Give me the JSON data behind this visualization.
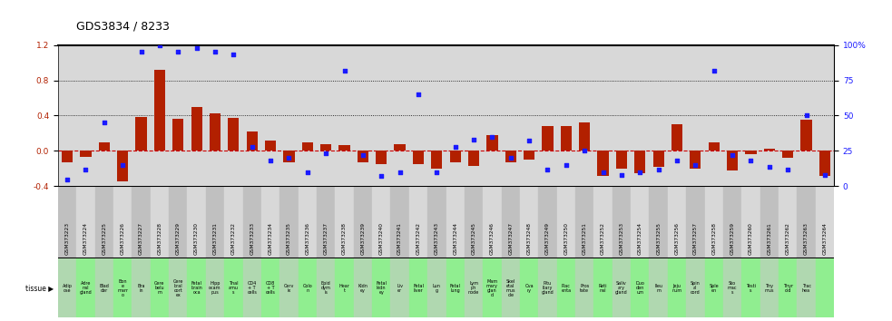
{
  "title": "GDS3834 / 8233",
  "gsm_labels": [
    "GSM373223",
    "GSM373224",
    "GSM373225",
    "GSM373226",
    "GSM373227",
    "GSM373228",
    "GSM373229",
    "GSM373230",
    "GSM373231",
    "GSM373232",
    "GSM373233",
    "GSM373234",
    "GSM373235",
    "GSM373236",
    "GSM373237",
    "GSM373238",
    "GSM373239",
    "GSM373240",
    "GSM373241",
    "GSM373242",
    "GSM373243",
    "GSM373244",
    "GSM373245",
    "GSM373246",
    "GSM373247",
    "GSM373248",
    "GSM373249",
    "GSM373250",
    "GSM373251",
    "GSM373252",
    "GSM373253",
    "GSM373254",
    "GSM373255",
    "GSM373256",
    "GSM373257",
    "GSM373258",
    "GSM373259",
    "GSM373260",
    "GSM373261",
    "GSM373262",
    "GSM373263",
    "GSM373264"
  ],
  "tissue_labels": [
    "Adip\nose",
    "Adre\nnal\ngland",
    "Blad\nder",
    "Bon\ne\nmarr\no",
    "Bra\nin",
    "Cere\nbelu\nm",
    "Cere\nbral\ncort\nex",
    "Fetal\nbrain\noca",
    "Hipp\nocam\npus",
    "Thal\namu\ns",
    "CD4\n+ T\ncells",
    "CD8\n+ T\ncells",
    "Cerv\nix",
    "Colo\nn",
    "Epid\ndym\nis",
    "Hear\nt",
    "Kidn\ney",
    "Fetal\nkidn\ney",
    "Liv\ner",
    "Fetal\nliver",
    "Lun\ng",
    "Fetal\nlung",
    "Lym\nph\nnode",
    "Mam\nmary\nglan\nd",
    "Skel\netal\nmus\ncle",
    "Ova\nry",
    "Pitu\nitary\ngland",
    "Plac\nenta",
    "Pros\ntate",
    "Reti\nnal",
    "Saliv\nary\ngland",
    "Duo\nden\num",
    "Ileu\nm",
    "Jeju\nnum",
    "Spin\nal\ncord",
    "Sple\nen",
    "Sto\nmac\ns",
    "Testi\ns",
    "Thy\nmus",
    "Thyr\noid",
    "Trac\nhea"
  ],
  "log10_ratio": [
    -0.13,
    -0.07,
    0.1,
    -0.35,
    0.38,
    0.92,
    0.36,
    0.5,
    0.43,
    0.37,
    0.22,
    0.12,
    -0.13,
    0.1,
    0.08,
    0.07,
    -0.13,
    -0.15,
    0.08,
    -0.15,
    -0.2,
    -0.13,
    -0.17,
    0.18,
    -0.13,
    -0.1,
    0.28,
    0.28,
    0.32,
    -0.28,
    -0.2,
    -0.25,
    -0.18,
    0.3,
    -0.2,
    0.1,
    -0.22,
    -0.04,
    0.02,
    -0.08,
    0.35,
    -0.28
  ],
  "percentile_rank": [
    5,
    12,
    45,
    15,
    95,
    100,
    95,
    98,
    95,
    93,
    28,
    18,
    20,
    10,
    23,
    82,
    22,
    7,
    10,
    65,
    10,
    28,
    33,
    35,
    20,
    32,
    12,
    15,
    25,
    10,
    8,
    10,
    12,
    18,
    15,
    82,
    22,
    18,
    14,
    12,
    50,
    8
  ],
  "bar_color": "#b22000",
  "dot_color": "#1a1aff",
  "plot_bg_color": "#d8d8d8",
  "gsm_bg_color": "#d0d0d0",
  "tissue_bg_color": "#90ee90",
  "ylim": [
    -0.4,
    1.2
  ],
  "y2lim": [
    0,
    100
  ],
  "yticks_left": [
    -0.4,
    0.0,
    0.4,
    0.8,
    1.2
  ],
  "yticks_right": [
    0,
    25,
    50,
    75,
    100
  ],
  "dotted_hlines": [
    0.4,
    0.8
  ],
  "zero_line_color": "#cc0000",
  "top_border_color": "#000000"
}
